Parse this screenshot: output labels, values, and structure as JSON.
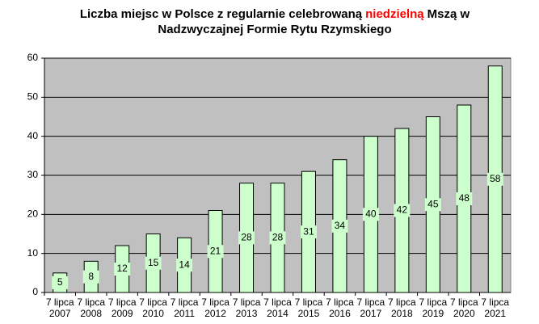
{
  "chart_data": {
    "type": "bar",
    "title_lines": [
      [
        "Liczba miejsc w Polsce z regularnie celebrowaną",
        "niedzielną",
        "Mszą w"
      ],
      [
        "Nadzwyczajnej Formie Rytu Rzymskiego"
      ]
    ],
    "title_highlight_color": "#ff0000",
    "categories": [
      [
        "7 lipca",
        "2007"
      ],
      [
        "7 lipca",
        "2008"
      ],
      [
        "7 lipca",
        "2009"
      ],
      [
        "7 lipca",
        "2010"
      ],
      [
        "7 lipca",
        "2011"
      ],
      [
        "7 lipca",
        "2012"
      ],
      [
        "7 lipca",
        "2013"
      ],
      [
        "7 lipca",
        "2014"
      ],
      [
        "7 lipca",
        "2015"
      ],
      [
        "7 lipca",
        "2016"
      ],
      [
        "7 lipca",
        "2017"
      ],
      [
        "7 lipca",
        "2018"
      ],
      [
        "7 lipca",
        "2019"
      ],
      [
        "7 lipca",
        "2020"
      ],
      [
        "7 lipca",
        "2021"
      ]
    ],
    "values": [
      5,
      8,
      12,
      15,
      14,
      21,
      28,
      28,
      31,
      34,
      40,
      42,
      45,
      48,
      58
    ],
    "color": "#ccffcc",
    "plot_background": "#c0c0c0",
    "ylim": [
      0,
      60
    ],
    "yticks": [
      0,
      10,
      20,
      30,
      40,
      50,
      60
    ],
    "grid": true
  }
}
